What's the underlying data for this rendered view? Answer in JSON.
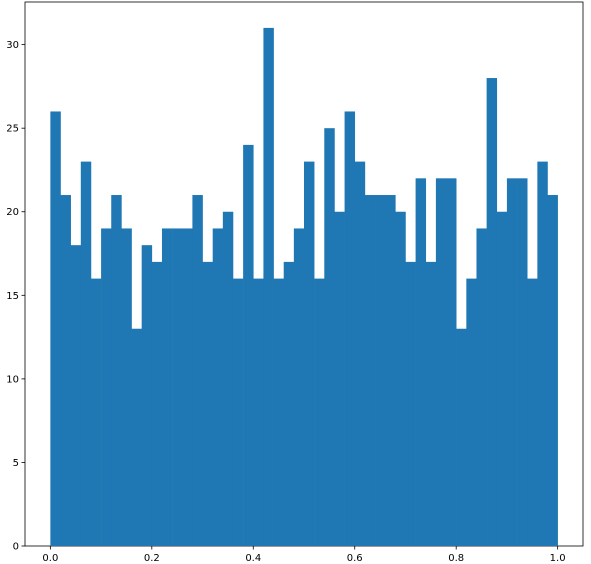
{
  "chart_data": {
    "type": "histogram",
    "color": "#1f77b4",
    "bins": [
      0,
      0.02,
      0.04,
      0.06,
      0.08,
      0.1,
      0.12,
      0.14,
      0.16,
      0.18,
      0.2,
      0.22,
      0.24,
      0.26,
      0.28,
      0.3,
      0.32,
      0.34,
      0.36,
      0.38,
      0.4,
      0.42,
      0.44,
      0.46,
      0.48,
      0.5,
      0.52,
      0.54,
      0.56,
      0.58,
      0.6,
      0.62,
      0.64,
      0.66,
      0.68,
      0.7,
      0.72,
      0.74,
      0.76,
      0.78,
      0.8,
      0.82,
      0.84,
      0.86,
      0.88,
      0.9,
      0.92,
      0.94,
      0.96,
      0.98,
      1.0
    ],
    "counts": [
      26,
      21,
      18,
      23,
      16,
      19,
      21,
      19,
      13,
      18,
      17,
      19,
      19,
      19,
      21,
      17,
      19,
      20,
      16,
      24,
      16,
      31,
      16,
      17,
      19,
      23,
      16,
      25,
      20,
      26,
      23,
      21,
      21,
      21,
      20,
      17,
      22,
      17,
      22,
      22,
      13,
      16,
      19,
      28,
      20,
      22,
      22,
      16,
      23,
      21
    ],
    "xlim": [
      -0.05,
      1.05
    ],
    "ylim": [
      0,
      32.55
    ],
    "xticks": [
      {
        "value": 0,
        "label": "0.0"
      },
      0.2,
      0.4,
      0.6,
      0.8,
      {
        "value": 1,
        "label": "1.0"
      }
    ],
    "yticks": [
      0,
      5,
      10,
      15,
      20,
      25,
      30
    ]
  }
}
